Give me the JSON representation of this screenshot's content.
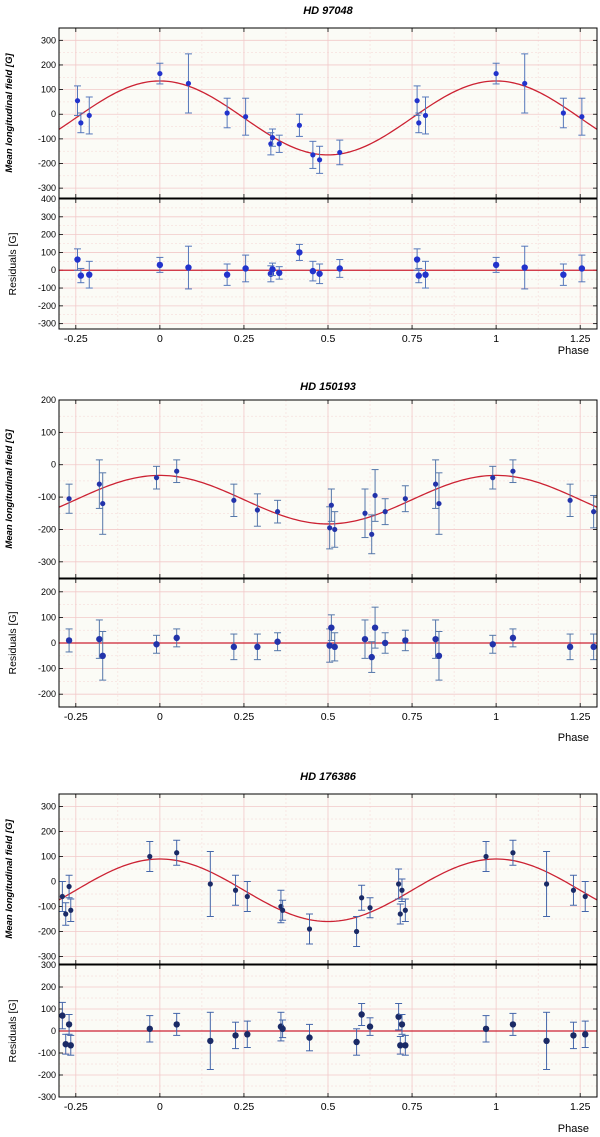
{
  "chart_data": [
    {
      "type": "scatter",
      "title": "HD 97048",
      "ylabel": "Mean longitudinal field [G]",
      "residual_ylabel": "Residuals [G]",
      "xlabel": "Phase",
      "xlim": [
        -0.3,
        1.3
      ],
      "xticks": [
        -0.25,
        0,
        0.25,
        0.5,
        0.75,
        1,
        1.25
      ],
      "xtick_labels": [
        "-0.25",
        "0",
        "0.25",
        "0.5",
        "0.75",
        "1",
        "1.25"
      ],
      "ylim": [
        -340,
        350
      ],
      "yticks": [
        -300,
        -200,
        -100,
        0,
        100,
        200,
        300
      ],
      "res_ylim": [
        -330,
        400
      ],
      "res_yticks": [
        -300,
        -200,
        -100,
        0,
        100,
        200,
        300,
        400
      ],
      "model": {
        "amplitude": 150,
        "offset": -15,
        "phase0": 0
      },
      "colors": {
        "marker": "#2233cc",
        "errorbar": "#5577bb",
        "model": "#cc2233",
        "grid": "#f2c9c9"
      },
      "points": [
        {
          "x": -0.245,
          "y": 55,
          "err": 60
        },
        {
          "x": -0.235,
          "y": -35,
          "err": 40
        },
        {
          "x": -0.21,
          "y": -5,
          "err": 75
        },
        {
          "x": 0.0,
          "y": 165,
          "err": 42
        },
        {
          "x": 0.085,
          "y": 125,
          "err": 120
        },
        {
          "x": 0.2,
          "y": 5,
          "err": 60
        },
        {
          "x": 0.255,
          "y": -10,
          "err": 75
        },
        {
          "x": 0.33,
          "y": -120,
          "err": 45
        },
        {
          "x": 0.335,
          "y": -95,
          "err": 35
        },
        {
          "x": 0.355,
          "y": -120,
          "err": 35
        },
        {
          "x": 0.415,
          "y": -45,
          "err": 45
        },
        {
          "x": 0.455,
          "y": -165,
          "err": 55
        },
        {
          "x": 0.475,
          "y": -185,
          "err": 55
        },
        {
          "x": 0.535,
          "y": -155,
          "err": 50
        },
        {
          "x": 0.765,
          "y": 55,
          "err": 60
        },
        {
          "x": 0.77,
          "y": -35,
          "err": 40
        },
        {
          "x": 0.79,
          "y": -5,
          "err": 75
        },
        {
          "x": 1.0,
          "y": 165,
          "err": 42
        },
        {
          "x": 1.085,
          "y": 125,
          "err": 120
        },
        {
          "x": 1.2,
          "y": 5,
          "err": 60
        },
        {
          "x": 1.255,
          "y": -10,
          "err": 75
        }
      ],
      "residuals": [
        {
          "x": -0.245,
          "y": 60,
          "err": 60
        },
        {
          "x": -0.235,
          "y": -30,
          "err": 40
        },
        {
          "x": -0.21,
          "y": -25,
          "err": 75
        },
        {
          "x": 0.0,
          "y": 30,
          "err": 42
        },
        {
          "x": 0.085,
          "y": 15,
          "err": 120
        },
        {
          "x": 0.2,
          "y": -25,
          "err": 60
        },
        {
          "x": 0.255,
          "y": 10,
          "err": 75
        },
        {
          "x": 0.33,
          "y": -20,
          "err": 45
        },
        {
          "x": 0.335,
          "y": 5,
          "err": 35
        },
        {
          "x": 0.355,
          "y": -15,
          "err": 35
        },
        {
          "x": 0.415,
          "y": 100,
          "err": 45
        },
        {
          "x": 0.455,
          "y": -5,
          "err": 55
        },
        {
          "x": 0.475,
          "y": -20,
          "err": 55
        },
        {
          "x": 0.535,
          "y": 10,
          "err": 50
        },
        {
          "x": 0.765,
          "y": 60,
          "err": 60
        },
        {
          "x": 0.77,
          "y": -30,
          "err": 40
        },
        {
          "x": 0.79,
          "y": -25,
          "err": 75
        },
        {
          "x": 1.0,
          "y": 30,
          "err": 42
        },
        {
          "x": 1.085,
          "y": 15,
          "err": 120
        },
        {
          "x": 1.2,
          "y": -25,
          "err": 60
        },
        {
          "x": 1.255,
          "y": 10,
          "err": 75
        }
      ]
    },
    {
      "type": "scatter",
      "title": "HD 150193",
      "ylabel": "Mean longitudinal field [G]",
      "residual_ylabel": "Residuals [G]",
      "xlabel": "Phase",
      "xlim": [
        -0.3,
        1.3
      ],
      "xticks": [
        -0.25,
        0,
        0.25,
        0.5,
        0.75,
        1,
        1.25
      ],
      "xtick_labels": [
        "-0.25",
        "0",
        "0.25",
        "0.5",
        "0.75",
        "1",
        "1.25"
      ],
      "ylim": [
        -350,
        200
      ],
      "yticks": [
        -300,
        -200,
        -100,
        0,
        100,
        200
      ],
      "res_ylim": [
        -250,
        250
      ],
      "res_yticks": [
        -200,
        -100,
        0,
        100,
        200
      ],
      "model": {
        "amplitude": 75,
        "offset": -108,
        "phase0": 0
      },
      "colors": {
        "marker": "#2233aa",
        "errorbar": "#5577aa",
        "model": "#cc2233",
        "grid": "#f2c9c9"
      },
      "points": [
        {
          "x": -0.27,
          "y": -105,
          "err": 45
        },
        {
          "x": -0.18,
          "y": -60,
          "err": 75
        },
        {
          "x": -0.17,
          "y": -120,
          "err": 95
        },
        {
          "x": -0.01,
          "y": -40,
          "err": 35
        },
        {
          "x": 0.05,
          "y": -20,
          "err": 35
        },
        {
          "x": 0.22,
          "y": -110,
          "err": 50
        },
        {
          "x": 0.29,
          "y": -140,
          "err": 50
        },
        {
          "x": 0.35,
          "y": -145,
          "err": 35
        },
        {
          "x": 0.505,
          "y": -195,
          "err": 65
        },
        {
          "x": 0.51,
          "y": -125,
          "err": 50
        },
        {
          "x": 0.52,
          "y": -200,
          "err": 55
        },
        {
          "x": 0.61,
          "y": -150,
          "err": 75
        },
        {
          "x": 0.63,
          "y": -215,
          "err": 60
        },
        {
          "x": 0.64,
          "y": -95,
          "err": 80
        },
        {
          "x": 0.67,
          "y": -145,
          "err": 40
        },
        {
          "x": 0.73,
          "y": -105,
          "err": 40
        },
        {
          "x": 0.82,
          "y": -60,
          "err": 75
        },
        {
          "x": 0.83,
          "y": -120,
          "err": 95
        },
        {
          "x": 0.99,
          "y": -40,
          "err": 35
        },
        {
          "x": 1.05,
          "y": -20,
          "err": 35
        },
        {
          "x": 1.22,
          "y": -110,
          "err": 50
        },
        {
          "x": 1.29,
          "y": -145,
          "err": 50
        }
      ],
      "residuals": [
        {
          "x": -0.27,
          "y": 10,
          "err": 45
        },
        {
          "x": -0.18,
          "y": 15,
          "err": 75
        },
        {
          "x": -0.17,
          "y": -50,
          "err": 95
        },
        {
          "x": -0.01,
          "y": -5,
          "err": 35
        },
        {
          "x": 0.05,
          "y": 20,
          "err": 35
        },
        {
          "x": 0.22,
          "y": -15,
          "err": 50
        },
        {
          "x": 0.29,
          "y": -15,
          "err": 50
        },
        {
          "x": 0.35,
          "y": 5,
          "err": 35
        },
        {
          "x": 0.505,
          "y": -10,
          "err": 65
        },
        {
          "x": 0.51,
          "y": 60,
          "err": 50
        },
        {
          "x": 0.52,
          "y": -15,
          "err": 55
        },
        {
          "x": 0.61,
          "y": 15,
          "err": 75
        },
        {
          "x": 0.63,
          "y": -55,
          "err": 60
        },
        {
          "x": 0.64,
          "y": 60,
          "err": 80
        },
        {
          "x": 0.67,
          "y": 0,
          "err": 40
        },
        {
          "x": 0.73,
          "y": 10,
          "err": 40
        },
        {
          "x": 0.82,
          "y": 15,
          "err": 75
        },
        {
          "x": 0.83,
          "y": -50,
          "err": 95
        },
        {
          "x": 0.99,
          "y": -5,
          "err": 35
        },
        {
          "x": 1.05,
          "y": 20,
          "err": 35
        },
        {
          "x": 1.22,
          "y": -15,
          "err": 50
        },
        {
          "x": 1.29,
          "y": -15,
          "err": 50
        }
      ]
    },
    {
      "type": "scatter",
      "title": "HD 176386",
      "ylabel": "Mean longitudinal field [G]",
      "residual_ylabel": "Residuals [G]",
      "xlabel": "Phase",
      "xlim": [
        -0.3,
        1.3
      ],
      "xticks": [
        -0.25,
        0,
        0.25,
        0.5,
        0.75,
        1,
        1.25
      ],
      "xtick_labels": [
        "-0.25",
        "0",
        "0.25",
        "0.5",
        "0.75",
        "1",
        "1.25"
      ],
      "ylim": [
        -330,
        350
      ],
      "yticks": [
        -300,
        -200,
        -100,
        0,
        100,
        200,
        300
      ],
      "res_ylim": [
        -300,
        300
      ],
      "res_yticks": [
        -300,
        -200,
        -100,
        0,
        100,
        200,
        300
      ],
      "model": {
        "amplitude": 125,
        "offset": -35,
        "phase0": 0
      },
      "colors": {
        "marker": "#1a2a66",
        "errorbar": "#4466aa",
        "model": "#cc2233",
        "grid": "#f2c9c9"
      },
      "points": [
        {
          "x": -0.29,
          "y": -60,
          "err": 60
        },
        {
          "x": -0.28,
          "y": -130,
          "err": 45
        },
        {
          "x": -0.27,
          "y": -20,
          "err": 45
        },
        {
          "x": -0.265,
          "y": -115,
          "err": 45
        },
        {
          "x": -0.03,
          "y": 100,
          "err": 60
        },
        {
          "x": 0.05,
          "y": 115,
          "err": 50
        },
        {
          "x": 0.15,
          "y": -10,
          "err": 130
        },
        {
          "x": 0.225,
          "y": -35,
          "err": 60
        },
        {
          "x": 0.26,
          "y": -60,
          "err": 60
        },
        {
          "x": 0.36,
          "y": -100,
          "err": 65
        },
        {
          "x": 0.365,
          "y": -115,
          "err": 40
        },
        {
          "x": 0.445,
          "y": -190,
          "err": 60
        },
        {
          "x": 0.585,
          "y": -200,
          "err": 60
        },
        {
          "x": 0.6,
          "y": -65,
          "err": 50
        },
        {
          "x": 0.625,
          "y": -105,
          "err": 40
        },
        {
          "x": 0.71,
          "y": -10,
          "err": 60
        },
        {
          "x": 0.715,
          "y": -130,
          "err": 40
        },
        {
          "x": 0.72,
          "y": -35,
          "err": 45
        },
        {
          "x": 0.73,
          "y": -115,
          "err": 45
        },
        {
          "x": 0.97,
          "y": 100,
          "err": 60
        },
        {
          "x": 1.05,
          "y": 115,
          "err": 50
        },
        {
          "x": 1.15,
          "y": -10,
          "err": 130
        },
        {
          "x": 1.23,
          "y": -35,
          "err": 60
        },
        {
          "x": 1.265,
          "y": -60,
          "err": 60
        }
      ],
      "residuals": [
        {
          "x": -0.29,
          "y": 70,
          "err": 60
        },
        {
          "x": -0.28,
          "y": -60,
          "err": 45
        },
        {
          "x": -0.27,
          "y": 30,
          "err": 45
        },
        {
          "x": -0.265,
          "y": -65,
          "err": 45
        },
        {
          "x": -0.03,
          "y": 10,
          "err": 60
        },
        {
          "x": 0.05,
          "y": 30,
          "err": 50
        },
        {
          "x": 0.15,
          "y": -45,
          "err": 130
        },
        {
          "x": 0.225,
          "y": -20,
          "err": 60
        },
        {
          "x": 0.26,
          "y": -15,
          "err": 60
        },
        {
          "x": 0.36,
          "y": 20,
          "err": 65
        },
        {
          "x": 0.365,
          "y": 10,
          "err": 40
        },
        {
          "x": 0.445,
          "y": -30,
          "err": 60
        },
        {
          "x": 0.585,
          "y": -50,
          "err": 60
        },
        {
          "x": 0.6,
          "y": 75,
          "err": 50
        },
        {
          "x": 0.625,
          "y": 20,
          "err": 40
        },
        {
          "x": 0.71,
          "y": 65,
          "err": 60
        },
        {
          "x": 0.715,
          "y": -65,
          "err": 40
        },
        {
          "x": 0.72,
          "y": 30,
          "err": 45
        },
        {
          "x": 0.73,
          "y": -65,
          "err": 45
        },
        {
          "x": 0.97,
          "y": 10,
          "err": 60
        },
        {
          "x": 1.05,
          "y": 30,
          "err": 50
        },
        {
          "x": 1.15,
          "y": -45,
          "err": 130
        },
        {
          "x": 1.23,
          "y": -20,
          "err": 60
        },
        {
          "x": 1.265,
          "y": -15,
          "err": 60
        }
      ]
    }
  ]
}
